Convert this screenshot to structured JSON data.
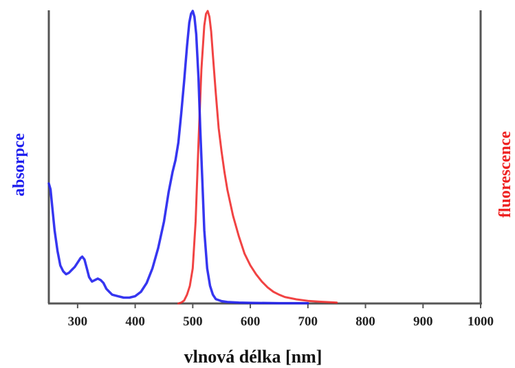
{
  "chart_data": {
    "type": "line",
    "xlabel": "vlnová délka [nm]",
    "ylabel_left": "absorpce",
    "ylabel_right": "fluorescence",
    "xlim": [
      250,
      1000
    ],
    "ylim": [
      0,
      1
    ],
    "grid": false,
    "x_ticks": [
      300,
      400,
      500,
      600,
      700,
      800,
      900,
      1000
    ],
    "colors": {
      "absorpce": "#2020ee",
      "fluorescence": "#ee2222",
      "axis": "#555555"
    },
    "series": [
      {
        "name": "absorpce",
        "x": [
          250,
          253,
          256,
          260,
          265,
          270,
          275,
          280,
          285,
          290,
          295,
          300,
          305,
          308,
          312,
          316,
          320,
          325,
          330,
          335,
          340,
          345,
          350,
          355,
          360,
          370,
          380,
          390,
          400,
          410,
          420,
          430,
          440,
          450,
          458,
          465,
          470,
          475,
          480,
          485,
          490,
          494,
          497,
          500,
          503,
          506,
          510,
          513,
          517,
          520,
          525,
          530,
          535,
          540,
          550,
          560,
          580,
          600,
          650,
          700
        ],
        "values": [
          0.41,
          0.39,
          0.33,
          0.25,
          0.18,
          0.13,
          0.11,
          0.1,
          0.105,
          0.115,
          0.125,
          0.14,
          0.155,
          0.16,
          0.15,
          0.12,
          0.09,
          0.075,
          0.08,
          0.085,
          0.08,
          0.07,
          0.05,
          0.04,
          0.03,
          0.025,
          0.02,
          0.02,
          0.025,
          0.04,
          0.07,
          0.12,
          0.19,
          0.28,
          0.38,
          0.45,
          0.49,
          0.55,
          0.65,
          0.76,
          0.88,
          0.96,
          0.99,
          1.0,
          0.98,
          0.92,
          0.77,
          0.6,
          0.4,
          0.25,
          0.12,
          0.06,
          0.03,
          0.015,
          0.008,
          0.005,
          0.003,
          0.002,
          0.001,
          0.001
        ]
      },
      {
        "name": "fluorescence",
        "x": [
          475,
          480,
          485,
          490,
          495,
          500,
          505,
          510,
          515,
          520,
          523,
          526,
          529,
          532,
          535,
          540,
          545,
          550,
          555,
          560,
          570,
          580,
          590,
          600,
          610,
          620,
          630,
          640,
          650,
          660,
          680,
          700,
          720,
          740,
          750
        ],
        "values": [
          0.0,
          0.003,
          0.01,
          0.03,
          0.06,
          0.12,
          0.28,
          0.55,
          0.8,
          0.95,
          0.99,
          1.0,
          0.98,
          0.93,
          0.85,
          0.72,
          0.6,
          0.52,
          0.45,
          0.39,
          0.3,
          0.23,
          0.17,
          0.13,
          0.1,
          0.075,
          0.055,
          0.04,
          0.03,
          0.022,
          0.014,
          0.009,
          0.006,
          0.004,
          0.003
        ]
      }
    ]
  }
}
